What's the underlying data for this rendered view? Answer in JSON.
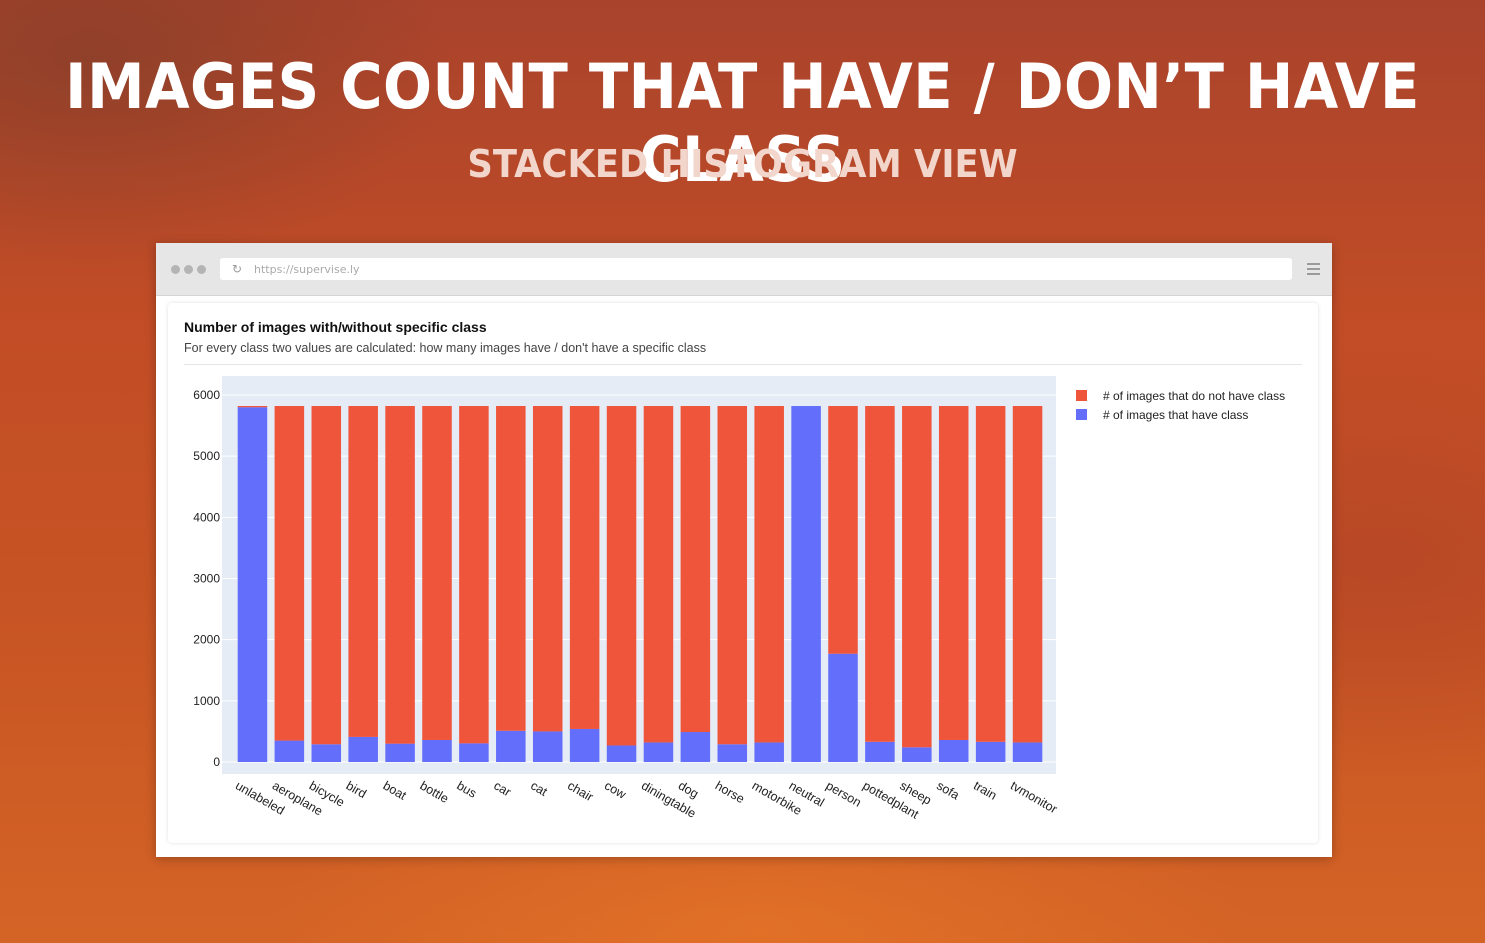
{
  "hero": {
    "title": "IMAGES COUNT THAT HAVE / DON’T HAVE CLASS",
    "subtitle": "STACKED HISTOGRAM VIEW"
  },
  "browser": {
    "url": "https://supervise.ly",
    "icons": [
      "window-dots-icon",
      "reload-icon",
      "menu-icon"
    ]
  },
  "card": {
    "title": "Number of images with/without specific class",
    "description": "For every class two values are calculated: how many images have / don't have a specific class"
  },
  "chart_data": {
    "type": "bar",
    "stacked": true,
    "categories": [
      "unlabeled",
      "aeroplane",
      "bicycle",
      "bird",
      "boat",
      "bottle",
      "bus",
      "car",
      "cat",
      "chair",
      "cow",
      "diningtable",
      "dog",
      "horse",
      "motorbike",
      "neutral",
      "person",
      "pottedplant",
      "sheep",
      "sofa",
      "train",
      "tvmonitor"
    ],
    "series": [
      {
        "name": "# of images that have class",
        "color": "#636efa",
        "values": [
          5800,
          350,
          290,
          410,
          300,
          360,
          305,
          510,
          500,
          540,
          270,
          320,
          490,
          290,
          320,
          5820,
          1770,
          330,
          240,
          360,
          330,
          320
        ]
      },
      {
        "name": "# of images that do not have class",
        "color": "#ef553b",
        "values": [
          20,
          5470,
          5530,
          5410,
          5520,
          5460,
          5515,
          5310,
          5320,
          5280,
          5550,
          5500,
          5330,
          5530,
          5500,
          0,
          4050,
          5490,
          5580,
          5460,
          5490,
          5500
        ]
      }
    ],
    "legend_order": [
      1,
      0
    ],
    "legend_position": "top-right",
    "ylim": [
      0,
      6200
    ],
    "yticks": [
      0,
      1000,
      2000,
      3000,
      4000,
      5000,
      6000
    ],
    "grid": true,
    "plot_background": "#e5ecf6",
    "xlabel": "",
    "ylabel": ""
  }
}
